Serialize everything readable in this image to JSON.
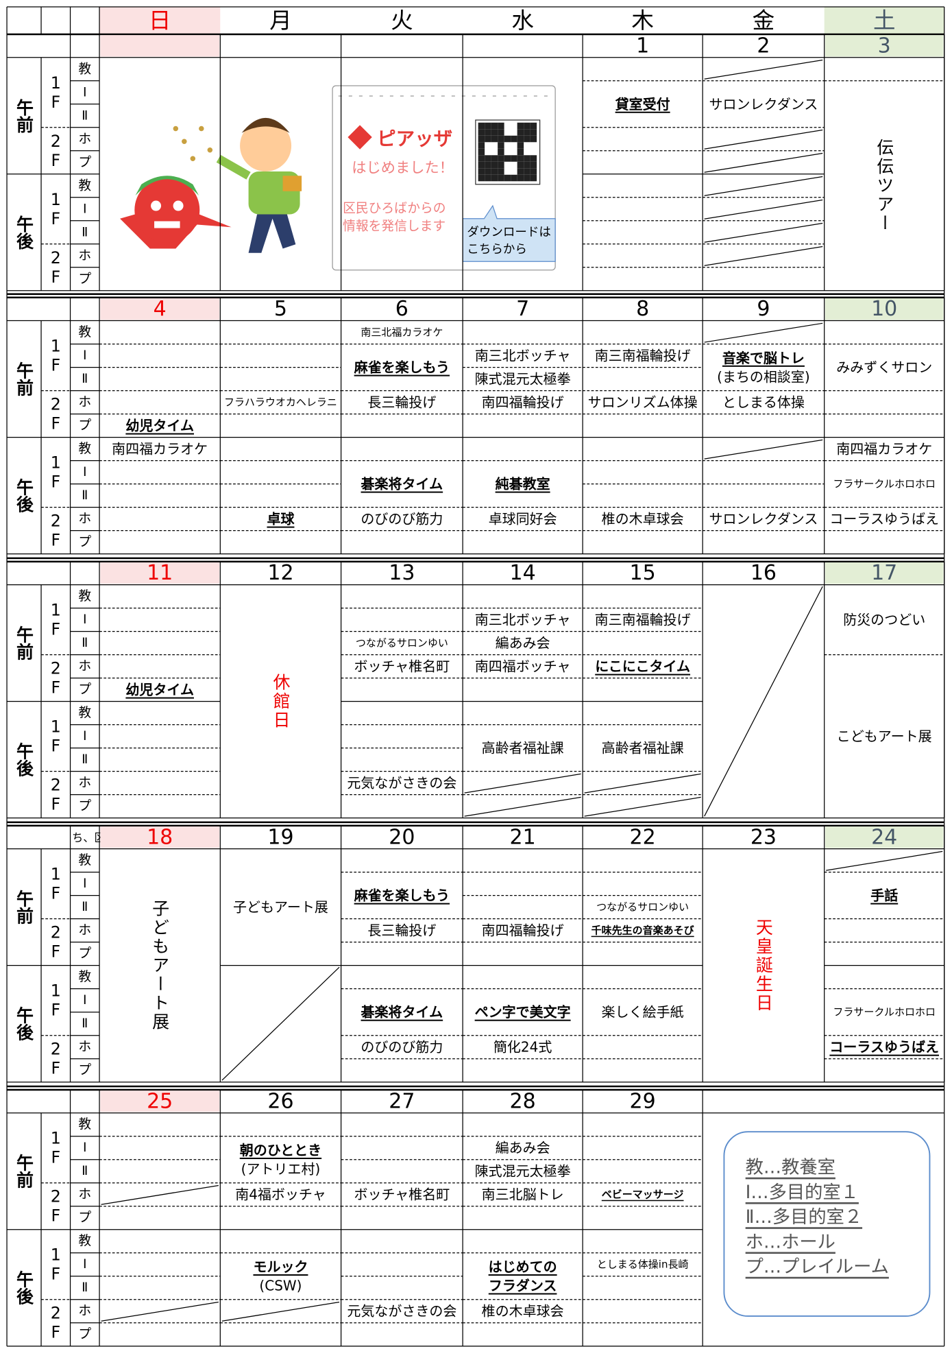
{
  "day_names": [
    "日",
    "月",
    "火",
    "水",
    "木",
    "金",
    "土"
  ],
  "periods": [
    "午前",
    "午後"
  ],
  "floors": [
    "1F",
    "2F"
  ],
  "rooms": [
    "教",
    "Ⅰ",
    "Ⅱ",
    "ホ",
    "プ"
  ],
  "notice": {
    "brand": "ピアッザ",
    "headline": "はじめました！",
    "message": [
      "区民ひろばからの",
      "情報を発信します"
    ],
    "bubble": [
      "ダウンロードは",
      "こちらから"
    ]
  },
  "weeks": [
    {
      "dates": [
        null,
        null,
        null,
        null,
        1,
        2,
        3
      ],
      "days": [
        [
          null,
          null,
          null,
          null,
          null,
          null,
          null,
          null,
          null,
          null
        ],
        [
          null,
          null,
          null,
          null,
          null,
          null,
          null,
          null,
          null,
          null
        ],
        [
          null,
          null,
          null,
          null,
          null,
          null,
          null,
          null,
          null,
          null
        ],
        [
          null,
          null,
          null,
          null,
          null,
          null,
          null,
          null,
          null,
          null
        ],
        [
          null,
          "貸室受付",
          null,
          null,
          null,
          null,
          null,
          null,
          null,
          null
        ],
        [
          null,
          "サロンレクダンス",
          null,
          null,
          null,
          null,
          null,
          null,
          null,
          null
        ],
        [
          null,
          "伝伝ツアー",
          null,
          null,
          null,
          null,
          null,
          null,
          null,
          null
        ]
      ]
    },
    {
      "dates": [
        4,
        5,
        6,
        7,
        8,
        9,
        10
      ],
      "days": [
        [
          null,
          null,
          null,
          null,
          "幼児タイム",
          "南四福カラオケ",
          null,
          null,
          null,
          null
        ],
        [
          null,
          null,
          null,
          "フラハラウオカヘレラニ",
          null,
          null,
          null,
          null,
          "卓球",
          null
        ],
        [
          "南三北福カラオケ",
          "麻雀を楽しもう",
          null,
          "長三輪投げ",
          null,
          null,
          "碁楽将タイム",
          null,
          "のびのび筋力",
          null
        ],
        [
          null,
          "南三北ボッチャ",
          "陳式混元太極拳",
          "南四福輪投げ",
          null,
          null,
          "純碁教室",
          null,
          "卓球同好会",
          null
        ],
        [
          null,
          "南三南福輪投げ",
          null,
          "サロンリズム体操",
          null,
          null,
          null,
          null,
          "椎の木卓球会",
          null
        ],
        [
          null,
          [
            "音楽で脳トレ",
            "(まちの相談室)"
          ],
          null,
          "としまる体操",
          null,
          null,
          null,
          null,
          "サロンレクダンス",
          null
        ],
        [
          null,
          "みみずくサロン",
          null,
          null,
          null,
          "南四福カラオケ",
          "フラサークルホロホロ",
          null,
          "コーラスゆうばえ",
          null
        ]
      ]
    },
    {
      "dates": [
        11,
        12,
        13,
        14,
        15,
        16,
        17
      ],
      "days": [
        [
          null,
          null,
          null,
          null,
          "幼児タイム",
          null,
          null,
          null,
          null,
          null
        ],
        [
          "休館日",
          null,
          null,
          null,
          null,
          null,
          null,
          null,
          null,
          null
        ],
        [
          null,
          null,
          "つながるサロンゆい",
          "ボッチャ椎名町",
          null,
          null,
          null,
          null,
          "元気ながさきの会",
          null
        ],
        [
          null,
          "南三北ボッチャ",
          "編あみ会",
          "南四福ボッチャ",
          null,
          null,
          "高齢者福祉課",
          null,
          null,
          null
        ],
        [
          null,
          "南三南福輪投げ",
          null,
          "にこにこタイム",
          null,
          null,
          "高齢者福祉課",
          null,
          null,
          null
        ],
        [
          null,
          null,
          null,
          null,
          null,
          null,
          null,
          null,
          null,
          null
        ],
        [
          "防災のつどい",
          null,
          null,
          "こどもアート展",
          null,
          null,
          null,
          null,
          null,
          null
        ]
      ]
    },
    {
      "note": "ち、区",
      "dates": [
        18,
        19,
        20,
        21,
        22,
        23,
        24
      ],
      "days": [
        [
          "子どもアート展",
          null,
          null,
          null,
          null,
          null,
          null,
          null,
          null,
          null
        ],
        [
          "子どもアート展",
          null,
          null,
          null,
          null,
          null,
          null,
          null,
          null,
          null
        ],
        [
          null,
          "麻雀を楽しもう",
          null,
          "長三輪投げ",
          null,
          null,
          "碁楽将タイム",
          null,
          "のびのび筋力",
          null
        ],
        [
          null,
          null,
          null,
          "南四福輪投げ",
          null,
          null,
          "ペン字で美文字",
          null,
          "簡化24式",
          null
        ],
        [
          null,
          null,
          "つながるサロンゆい",
          "千味先生の音楽あそび",
          null,
          null,
          "楽しく絵手紙",
          null,
          null,
          null
        ],
        [
          "天皇誕生日",
          null,
          null,
          null,
          null,
          null,
          null,
          null,
          null,
          null
        ],
        [
          null,
          "手話",
          null,
          null,
          null,
          null,
          "フラサークルホロホロ",
          null,
          "コーラスゆうばえ",
          null
        ]
      ]
    },
    {
      "dates": [
        25,
        26,
        27,
        28,
        29
      ],
      "days": [
        [
          null,
          null,
          null,
          null,
          null,
          null,
          null,
          null,
          null,
          null
        ],
        [
          null,
          [
            "朝のひととき",
            "(アトリエ村)"
          ],
          null,
          "南4福ボッチャ",
          null,
          null,
          [
            "モルック",
            "(CSW)"
          ],
          null,
          null,
          null
        ],
        [
          null,
          null,
          null,
          "ボッチャ椎名町",
          null,
          null,
          null,
          null,
          "元気ながさきの会",
          null
        ],
        [
          null,
          "編あみ会",
          "陳式混元太極拳",
          "南三北脳トレ",
          null,
          null,
          [
            "はじめての",
            "フラダンス"
          ],
          null,
          "椎の木卓球会",
          null
        ],
        [
          null,
          null,
          null,
          "ベビーマッサージ",
          null,
          null,
          "としまる体操in長崎",
          null,
          null,
          null
        ]
      ]
    }
  ],
  "legend": [
    "教…教養室",
    "Ⅰ…多目的室１",
    "Ⅱ…多目的室２",
    "ホ…ホール",
    "プ…プレイルーム"
  ]
}
